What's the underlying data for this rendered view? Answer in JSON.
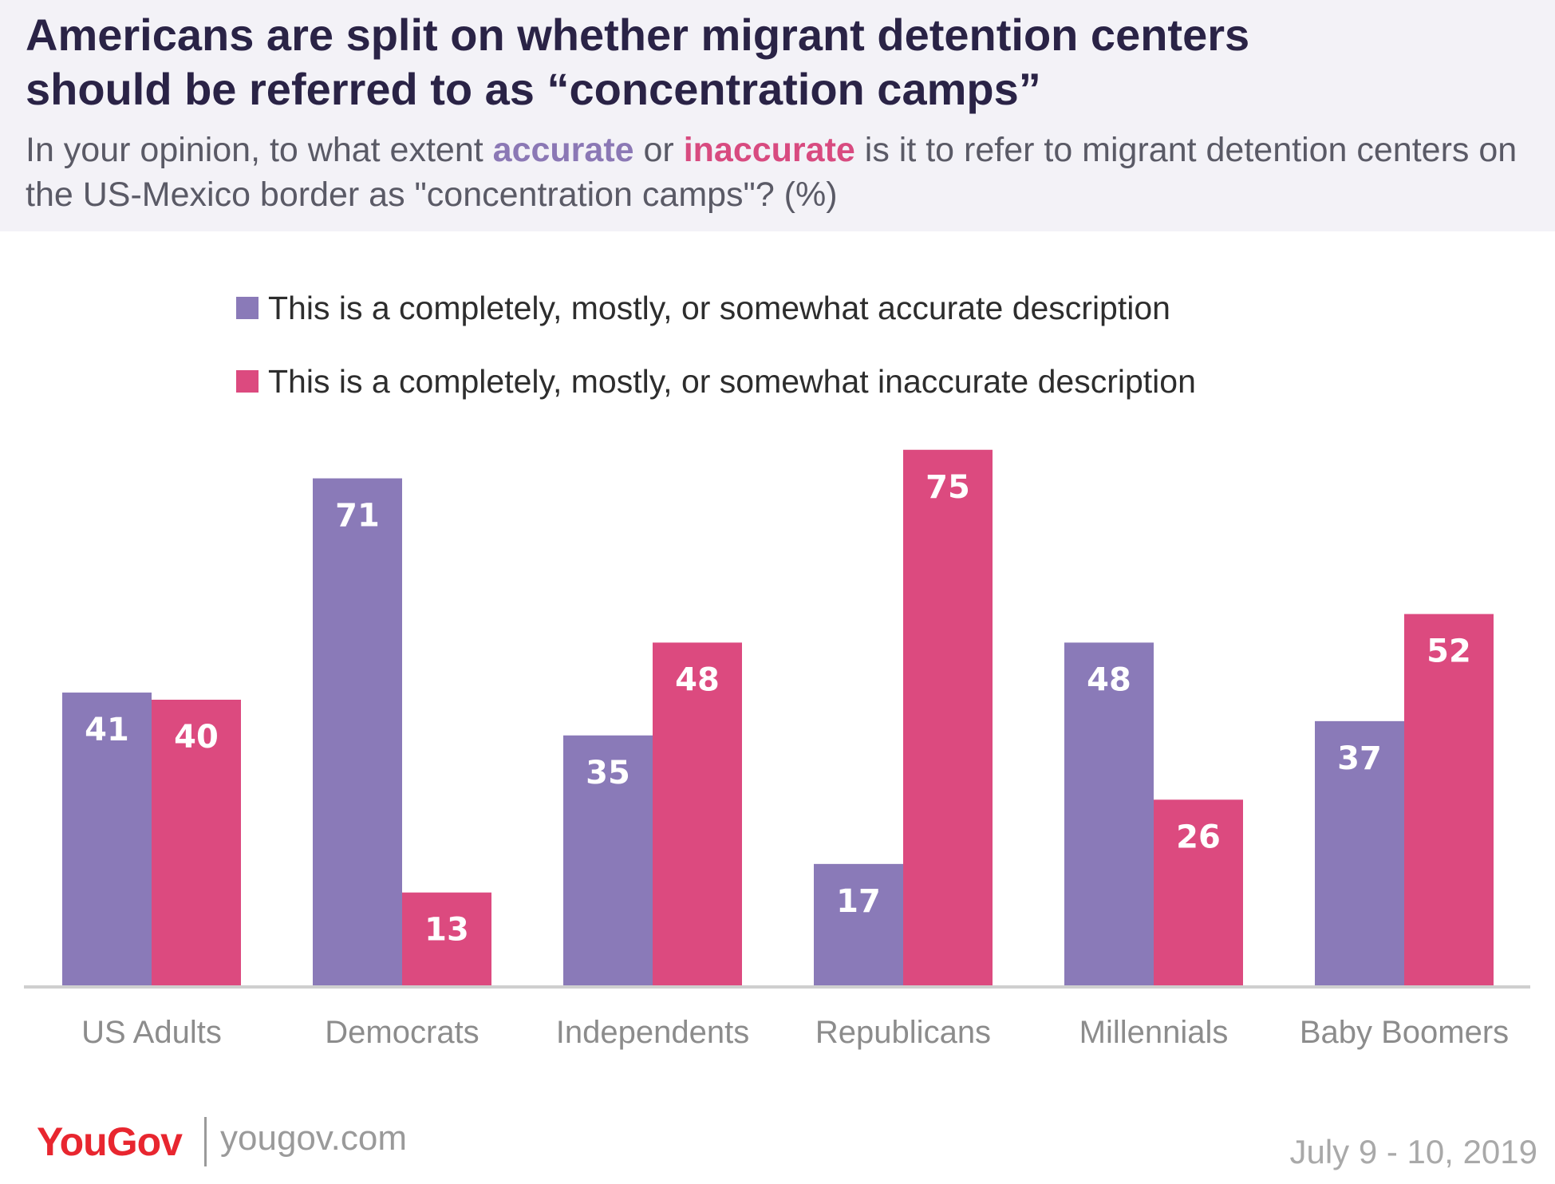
{
  "header": {
    "title_line1": "Americans are split on whether migrant detention centers",
    "title_line2": "should be referred to as “concentration camps”",
    "subtitle_pre": "In your opinion, to what extent ",
    "subtitle_accurate": "accurate",
    "subtitle_mid": " or ",
    "subtitle_inaccurate": "inaccurate",
    "subtitle_post": " is it to refer to migrant detention centers on the US-Mexico border as \"concentration camps\"? (%)"
  },
  "colors": {
    "accurate": "#8a7ab8",
    "inaccurate": "#dc4a7f",
    "axis": "#cfcfcf",
    "category_label": "#8c8c8c"
  },
  "chart_data": {
    "type": "bar",
    "categories": [
      "US Adults",
      "Democrats",
      "Independents",
      "Republicans",
      "Millennials",
      "Baby Boomers"
    ],
    "series": [
      {
        "name": "This is a completely, mostly, or somewhat accurate description",
        "values": [
          41,
          71,
          35,
          17,
          48,
          37
        ]
      },
      {
        "name": "This is a completely, mostly, or somewhat inaccurate description",
        "values": [
          40,
          13,
          48,
          75,
          26,
          52
        ]
      }
    ],
    "ylim": [
      0,
      75
    ],
    "data_labels": true,
    "legend_position": "top-left",
    "grid": false
  },
  "footer": {
    "logo_you": "You",
    "logo_gov": "Gov",
    "url": "yougov.com",
    "date": "July 9 - 10, 2019"
  }
}
